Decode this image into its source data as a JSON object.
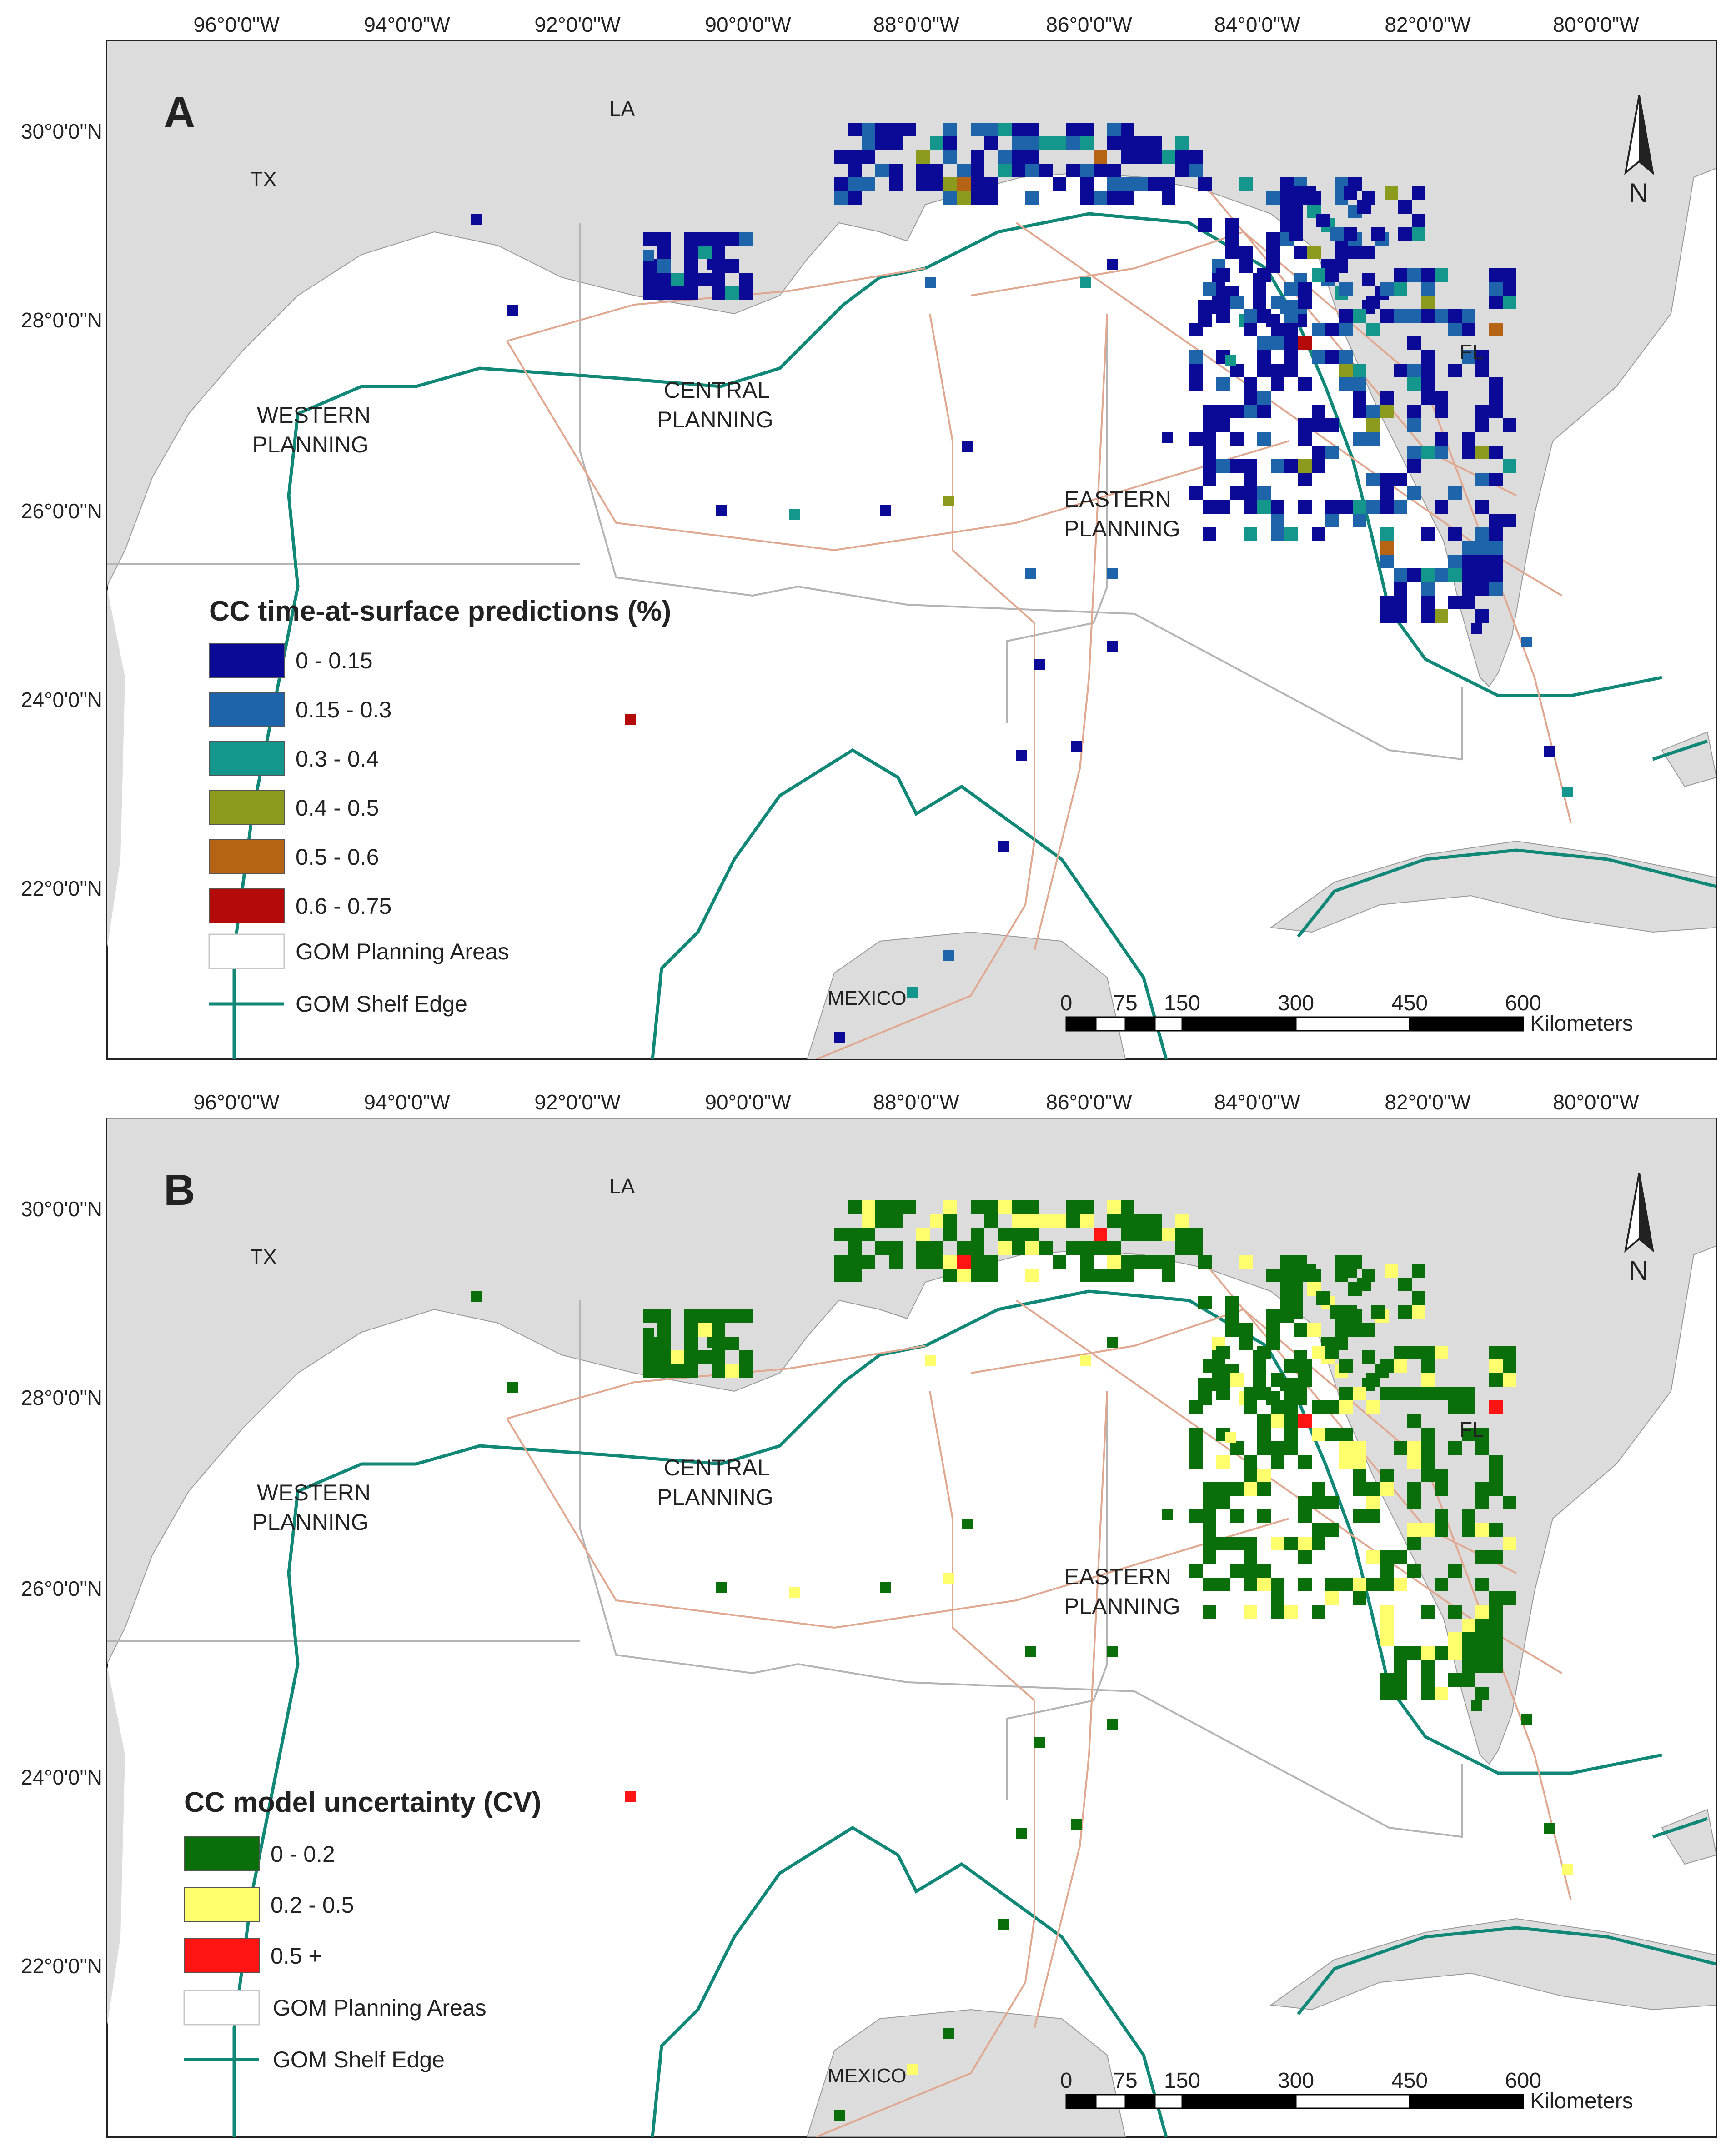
{
  "graticule": {
    "lon_labels": [
      "96°0'0\"W",
      "94°0'0\"W",
      "92°0'0\"W",
      "90°0'0\"W",
      "88°0'0\"W",
      "86°0'0\"W",
      "84°0'0\"W",
      "82°0'0\"W",
      "80°0'0\"W"
    ],
    "lat_labels": [
      "30°0'0\"N",
      "28°0'0\"N",
      "26°0'0\"N",
      "24°0'0\"N",
      "22°0'0\"N"
    ]
  },
  "place_labels": {
    "la": "LA",
    "tx": "TX",
    "fl": "FL",
    "mexico": "MEXICO",
    "western_1": "WESTERN",
    "western_2": "PLANNING",
    "central_1": "CENTRAL",
    "central_2": "PLANNING",
    "eastern_1": "EASTERN",
    "eastern_2": "PLANNING"
  },
  "north_arrow": "N",
  "scale_bar": {
    "ticks": [
      "0",
      "75",
      "150",
      "300",
      "450",
      "600"
    ],
    "unit": "Kilometers"
  },
  "panel_a": {
    "letter": "A",
    "legend_title": "CC time-at-surface predictions (%)",
    "legend": [
      {
        "label": "0 - 0.15",
        "color": "#0a0a96"
      },
      {
        "label": "0.15 - 0.3",
        "color": "#1e64aa"
      },
      {
        "label": "0.3 - 0.4",
        "color": "#14968c"
      },
      {
        "label": "0.4 - 0.5",
        "color": "#8c9a1e"
      },
      {
        "label": "0.5 - 0.6",
        "color": "#b46414"
      },
      {
        "label": "0.6 - 0.75",
        "color": "#b40a0a"
      }
    ],
    "planning_label": "GOM Planning Areas",
    "shelf_label": "GOM Shelf Edge"
  },
  "panel_b": {
    "letter": "B",
    "legend_title": "CC model uncertainty (CV)",
    "legend": [
      {
        "label": "0 - 0.2",
        "color": "#0a6e0a"
      },
      {
        "label": "0.2 - 0.5",
        "color": "#ffff6e"
      },
      {
        "label": "0.5 +",
        "color": "#ff1414"
      }
    ],
    "planning_label": "GOM Planning Areas",
    "shelf_label": "GOM Shelf Edge"
  },
  "colors": {
    "land": "#dcdcdc",
    "shelf": "#118877",
    "track": "#e0a890",
    "boundary": "#b4b4b4"
  }
}
